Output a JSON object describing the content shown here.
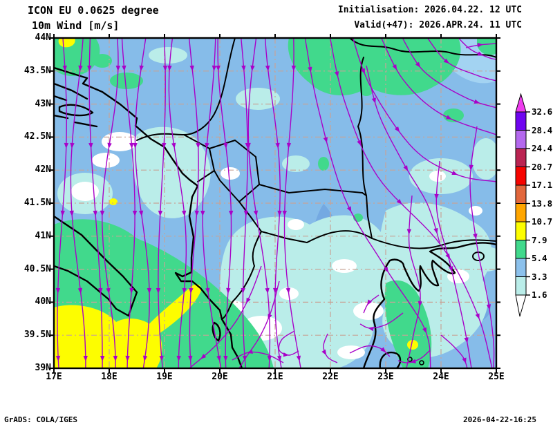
{
  "header": {
    "model_line": "ICON EU 0.0625 degree",
    "field_line": "10m Wind [m/s]",
    "init_line": "Initialisation: 2026.04.22. 12 UTC",
    "valid_line": "Valid(+47): 2026.APR.24. 11 UTC"
  },
  "footer": {
    "credit": "GrADS: COLA/IGES",
    "timestamp": "2026-04-22-16:25"
  },
  "axes": {
    "lat_ticks": [
      "44N",
      "43.5N",
      "43N",
      "42.5N",
      "42N",
      "41.5N",
      "41N",
      "40.5N",
      "40N",
      "39.5N",
      "39N"
    ],
    "lon_ticks": [
      "17E",
      "18E",
      "19E",
      "20E",
      "21E",
      "22E",
      "23E",
      "24E",
      "25E"
    ]
  },
  "legend": {
    "labels_top_to_bottom": [
      "32.6",
      "28.4",
      "24.4",
      "20.7",
      "17.1",
      "13.8",
      "10.7",
      "7.9",
      "5.4",
      "3.3",
      "1.6"
    ],
    "band_colors_top_to_bottom": [
      "#6F04F0",
      "#B468EE",
      "#BB2452",
      "#F60400",
      "#E2673C",
      "#FFA600",
      "#FDFD00",
      "#41D98C",
      "#8CC1EC",
      "#BAEDE9"
    ],
    "cap_color_above_max": "#EE3CEE"
  },
  "chart_data": {
    "type": "map",
    "subtype": "streamlines_with_speed_shading",
    "title": "ICON EU 0.0625 degree",
    "variable": "10m Wind [m/s]",
    "init": "2026.04.22. 12 UTC",
    "valid": "Valid(+47): 2026.APR.24. 11 UTC",
    "lon_range_deg_e": [
      17,
      25
    ],
    "lat_range_deg_n": [
      39,
      44
    ],
    "speed_levels_ms": [
      1.6,
      3.3,
      5.4,
      7.9,
      10.7,
      13.8,
      17.1,
      20.7,
      24.4,
      28.4,
      32.6
    ],
    "shade_colors_low_to_high": [
      "#FFFFFF",
      "#BAEDE9",
      "#8CC1EC",
      "#41D98C",
      "#FDFD00",
      "#FFA600",
      "#E2673C",
      "#F60400",
      "#BB2452",
      "#B468EE",
      "#6F04F0",
      "#EE3CEE"
    ],
    "streamline_color": "#A802C8",
    "grid": "0.5 deg lat / 1 deg lon dashed",
    "legend_position": "right",
    "flow_pattern": "Mostly northerly flow over the Adriatic and western Balkans turning east-southeast near the Danube; 5-11 m/s (green/yellow) over the southern Adriatic, Strait of Otranto and western Aegean, mostly 2-5 m/s elsewhere."
  }
}
